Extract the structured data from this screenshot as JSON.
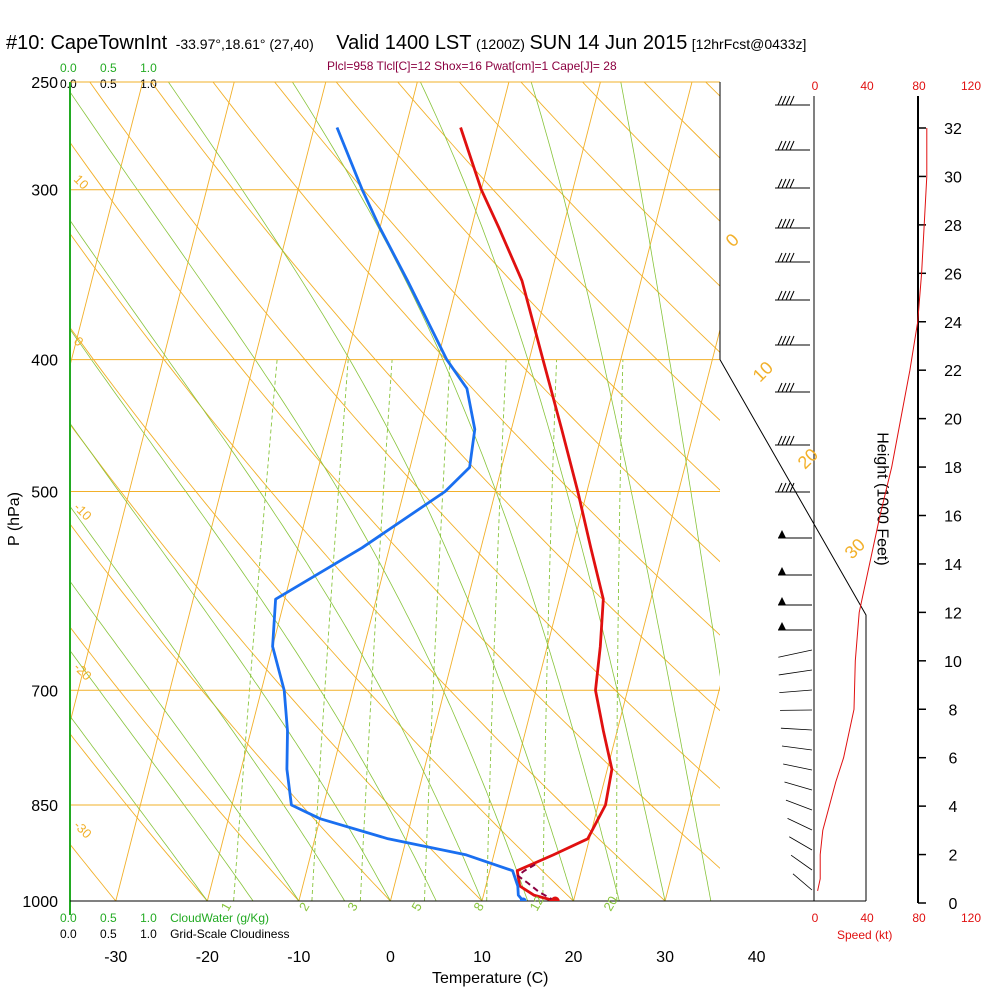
{
  "header": {
    "station": "#10: CapeTownInt",
    "coords": "-33.97°,18.61° (27,40)",
    "valid": "Valid 1400 LST",
    "utc": "(1200Z)",
    "date": "SUN 14 Jun 2015",
    "forecast": "[12hrFcst@0433z]"
  },
  "indices": "Plcl=958 Tlcl[C]=12 Shox=16 Pwat[cm]=1 Cape[J]= 28",
  "colors": {
    "isotherm": "#f2b02a",
    "mixing": "#88c43c",
    "temperature": "#e01010",
    "dewpoint": "#1a6ff0",
    "parcel": "#8b0040",
    "cloudwater": "#22aa22",
    "speed": "#e01010",
    "indices": "#8b0040"
  },
  "chart_data": {
    "type": "line",
    "title": "",
    "xlabel": "Temperature (C)",
    "ylabel": "P (hPa)",
    "right_label": "Height (1000 Feet)",
    "xlim": [
      -35,
      36
    ],
    "x_ticks": [
      -30,
      -20,
      -10,
      0,
      10,
      20,
      30,
      40
    ],
    "y_ticks": [
      250,
      300,
      400,
      500,
      700,
      850,
      1000
    ],
    "height_ticks": [
      0,
      2,
      4,
      6,
      8,
      10,
      12,
      14,
      16,
      18,
      20,
      22,
      24,
      26,
      28,
      30,
      32
    ],
    "speed_ticks": [
      0,
      40,
      80,
      120
    ],
    "speed_label": "Speed (kt)",
    "cloud_ticks": [
      "0.0",
      "0.5",
      "1.0"
    ],
    "cloudwater_label": "CloudWater (g/Kg)",
    "cloudiness_label": "Grid-Scale Cloudiness",
    "isotherm_labels": [
      "0",
      "10",
      "20",
      "30"
    ],
    "left_edge_labels": [
      "10",
      "0",
      "-10",
      "-20",
      "-30"
    ],
    "mixing_ratio_labels": [
      "1",
      "2",
      "3",
      "5",
      "8",
      "12",
      "20"
    ],
    "series": [
      {
        "key": "temperature",
        "points": [
          {
            "p": 1000,
            "t": 18.0
          },
          {
            "p": 990,
            "t": 15.5
          },
          {
            "p": 975,
            "t": 13.7
          },
          {
            "p": 950,
            "t": 13.0
          },
          {
            "p": 925,
            "t": 16.5
          },
          {
            "p": 900,
            "t": 19.8
          },
          {
            "p": 850,
            "t": 20.8
          },
          {
            "p": 800,
            "t": 20.5
          },
          {
            "p": 750,
            "t": 18.5
          },
          {
            "p": 700,
            "t": 16.5
          },
          {
            "p": 650,
            "t": 15.8
          },
          {
            "p": 600,
            "t": 14.8
          },
          {
            "p": 550,
            "t": 12.0
          },
          {
            "p": 500,
            "t": 9.0
          },
          {
            "p": 450,
            "t": 5.5
          },
          {
            "p": 400,
            "t": 1.5
          },
          {
            "p": 350,
            "t": -3.0
          },
          {
            "p": 320,
            "t": -7.0
          },
          {
            "p": 300,
            "t": -10.0
          },
          {
            "p": 270,
            "t": -14.0
          }
        ]
      },
      {
        "key": "dewpoint",
        "points": [
          {
            "p": 1000,
            "t": 14.5
          },
          {
            "p": 990,
            "t": 13.8
          },
          {
            "p": 975,
            "t": 13.5
          },
          {
            "p": 950,
            "t": 12.5
          },
          {
            "p": 925,
            "t": 7.0
          },
          {
            "p": 900,
            "t": -2.0
          },
          {
            "p": 870,
            "t": -10.0
          },
          {
            "p": 850,
            "t": -13.5
          },
          {
            "p": 800,
            "t": -15.0
          },
          {
            "p": 750,
            "t": -16.0
          },
          {
            "p": 700,
            "t": -17.5
          },
          {
            "p": 650,
            "t": -20.0
          },
          {
            "p": 600,
            "t": -21.0
          },
          {
            "p": 550,
            "t": -13.0
          },
          {
            "p": 500,
            "t": -5.5
          },
          {
            "p": 480,
            "t": -3.5
          },
          {
            "p": 450,
            "t": -4.0
          },
          {
            "p": 420,
            "t": -6.0
          },
          {
            "p": 400,
            "t": -9.0
          },
          {
            "p": 350,
            "t": -15.5
          },
          {
            "p": 320,
            "t": -20.0
          },
          {
            "p": 300,
            "t": -23.0
          },
          {
            "p": 270,
            "t": -27.5
          }
        ]
      },
      {
        "key": "parcel",
        "points": [
          {
            "p": 1000,
            "t": 18.0
          },
          {
            "p": 985,
            "t": 16.0
          },
          {
            "p": 970,
            "t": 14.5
          },
          {
            "p": 958,
            "t": 13.2
          },
          {
            "p": 950,
            "t": 13.8
          },
          {
            "p": 940,
            "t": 14.8
          }
        ]
      }
    ],
    "surface": {
      "t": 18.0,
      "td": 14.5
    },
    "height_profile_kt": [
      {
        "h": 0.5,
        "v": 2
      },
      {
        "h": 1,
        "v": 4
      },
      {
        "h": 2,
        "v": 4
      },
      {
        "h": 3,
        "v": 6
      },
      {
        "h": 4,
        "v": 11
      },
      {
        "h": 5,
        "v": 16
      },
      {
        "h": 6,
        "v": 22
      },
      {
        "h": 8,
        "v": 30
      },
      {
        "h": 10,
        "v": 31
      },
      {
        "h": 12,
        "v": 34
      },
      {
        "h": 14,
        "v": 42
      },
      {
        "h": 16,
        "v": 50
      },
      {
        "h": 18,
        "v": 59
      },
      {
        "h": 20,
        "v": 66
      },
      {
        "h": 22,
        "v": 73
      },
      {
        "h": 24,
        "v": 79
      },
      {
        "h": 26,
        "v": 82
      },
      {
        "h": 28,
        "v": 84
      },
      {
        "h": 30,
        "v": 86
      },
      {
        "h": 32,
        "v": 86
      }
    ]
  }
}
